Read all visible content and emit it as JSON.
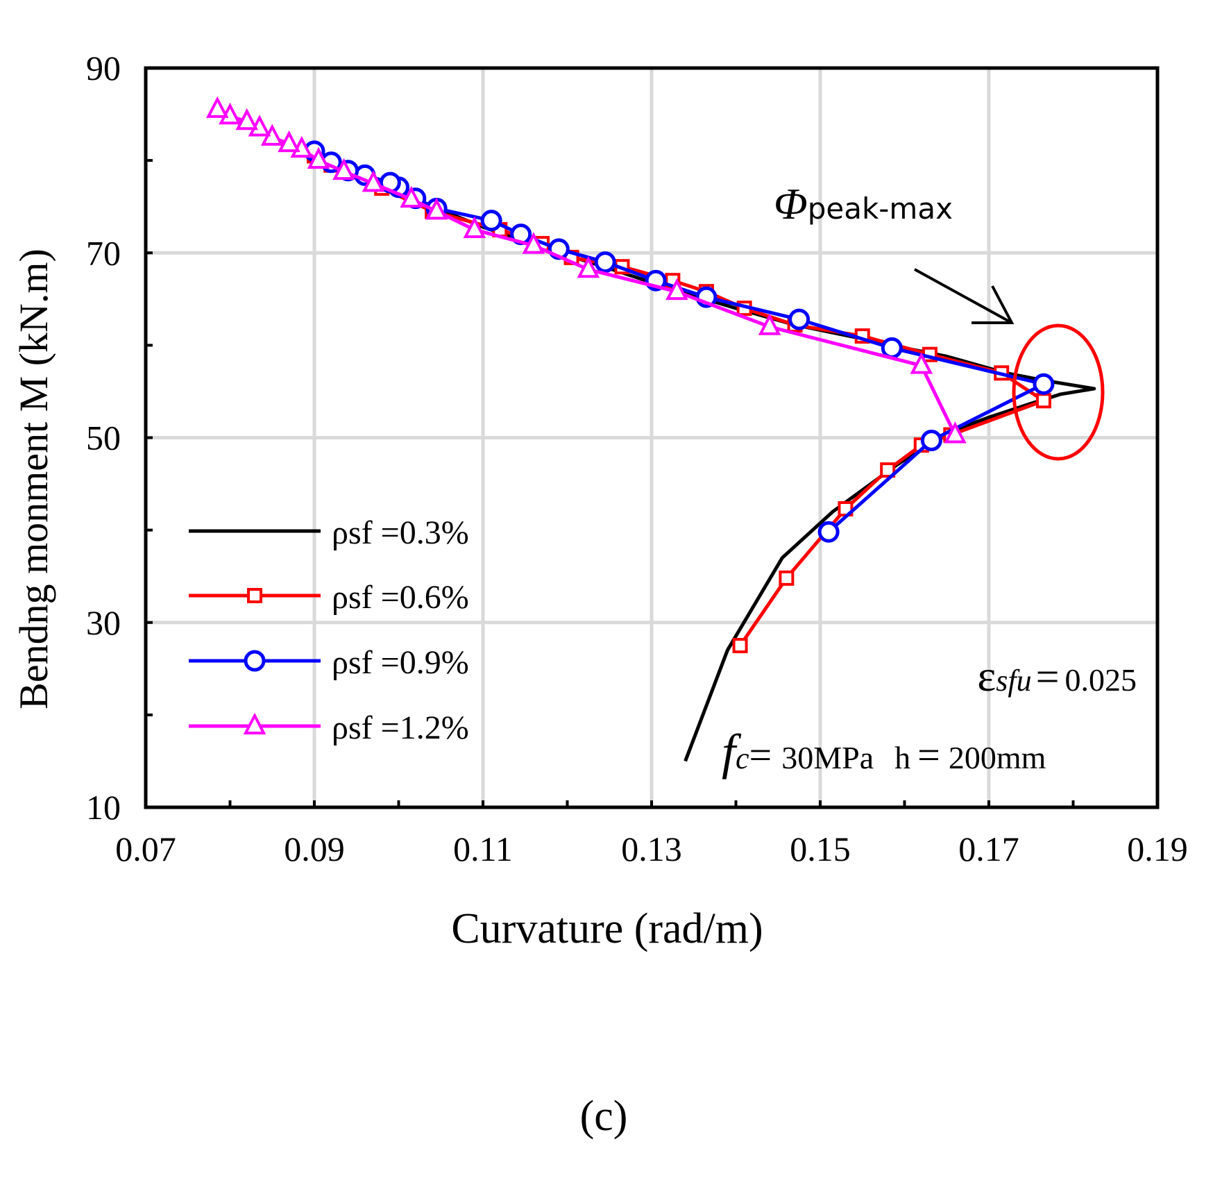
{
  "chart_data": {
    "type": "line",
    "title": "",
    "xlabel": "Curvature  (rad/m)",
    "ylabel": "Bendng monment  M  (kN.m)",
    "xlim": [
      0.07,
      0.19
    ],
    "ylim": [
      10,
      90
    ],
    "x_ticks": [
      0.07,
      0.09,
      0.11,
      0.13,
      0.15,
      0.17,
      0.19
    ],
    "x_tick_labels": [
      "0.07",
      "0.09",
      "0.11",
      "0.13",
      "0.15",
      "0.17",
      "0.19"
    ],
    "y_ticks": [
      10,
      30,
      50,
      70,
      90
    ],
    "y_tick_labels": [
      "10",
      "30",
      "50",
      "70",
      "90"
    ],
    "grid": true,
    "legend_position": "bottom-left",
    "series": [
      {
        "name": "ρsf =0.3%",
        "color": "#000000",
        "marker": "none",
        "x": [
          0.134,
          0.139,
          0.1455,
          0.1515,
          0.159,
          0.1632,
          0.1665,
          0.17,
          0.175,
          0.1785,
          0.1825,
          0.1765,
          0.172,
          0.165,
          0.16,
          0.155,
          0.147,
          0.14,
          0.132,
          0.124,
          0.117,
          0.11,
          0.104,
          0.099,
          0.094,
          0.09
        ],
        "y": [
          15,
          27,
          37,
          42,
          47,
          49.5,
          51,
          52.2,
          53.7,
          54.7,
          55.3,
          56.2,
          57.0,
          58.8,
          59.7,
          60.7,
          62.2,
          64.0,
          66.2,
          68.6,
          70.6,
          72.8,
          75.0,
          77.2,
          79.2,
          81.0
        ]
      },
      {
        "name": "ρsf =0.6%",
        "color": "#ff0000",
        "marker": "square",
        "x": [
          0.1405,
          0.146,
          0.153,
          0.158,
          0.162,
          0.1655,
          0.1765,
          0.1715,
          0.163,
          0.155,
          0.147,
          0.141,
          0.1365,
          0.1325,
          0.1265,
          0.1205,
          0.117,
          0.112,
          0.104,
          0.098,
          0.092,
          0.09
        ],
        "y": [
          27.5,
          34.8,
          42.3,
          46.5,
          49.2,
          50.3,
          54.0,
          57.0,
          59.0,
          61.0,
          62.2,
          64.0,
          65.8,
          67.0,
          68.5,
          69.5,
          71.0,
          72.5,
          74.5,
          77.0,
          79.5,
          80.5
        ]
      },
      {
        "name": "ρsf =0.9%",
        "color": "#0000ff",
        "marker": "circle",
        "x": [
          0.151,
          0.1632,
          0.1765,
          0.1585,
          0.1475,
          0.1365,
          0.1305,
          0.1245,
          0.119,
          0.1145,
          0.111,
          0.1045,
          0.102,
          0.1,
          0.099,
          0.096,
          0.094,
          0.092,
          0.09
        ],
        "y": [
          39.8,
          49.7,
          55.8,
          59.7,
          62.8,
          65.2,
          67.0,
          69.0,
          70.4,
          72.0,
          73.5,
          74.8,
          75.9,
          77.1,
          77.6,
          78.4,
          78.9,
          79.8,
          81.0
        ]
      },
      {
        "name": "ρsf =1.2%",
        "color": "#ff00ff",
        "marker": "triangle",
        "x": [
          0.166,
          0.162,
          0.144,
          0.133,
          0.1225,
          0.116,
          0.109,
          0.1045,
          0.1015,
          0.097,
          0.0935,
          0.0905,
          0.0885,
          0.087,
          0.085,
          0.0835,
          0.082,
          0.08,
          0.0785
        ],
        "y": [
          50.3,
          57.8,
          62.0,
          65.8,
          68.2,
          70.8,
          72.5,
          74.5,
          75.8,
          77.5,
          78.8,
          80.0,
          81.2,
          81.8,
          82.5,
          83.5,
          84.2,
          84.8,
          85.5
        ]
      }
    ],
    "annotations": {
      "phi_symbol": "Φ",
      "phi_subscript": "peak-max",
      "eps_symbol": "ε",
      "eps_subscript": "sfu",
      "eps_equals": "=",
      "eps_value": "0.025",
      "fc_symbol": "f",
      "fc_subscript": "c",
      "fc_equals": "=",
      "fc_value": "30MPa",
      "h_label": "h",
      "h_equals": "=",
      "h_value": "200mm",
      "highlight_color": "#ff0000"
    },
    "caption": "(c)"
  }
}
